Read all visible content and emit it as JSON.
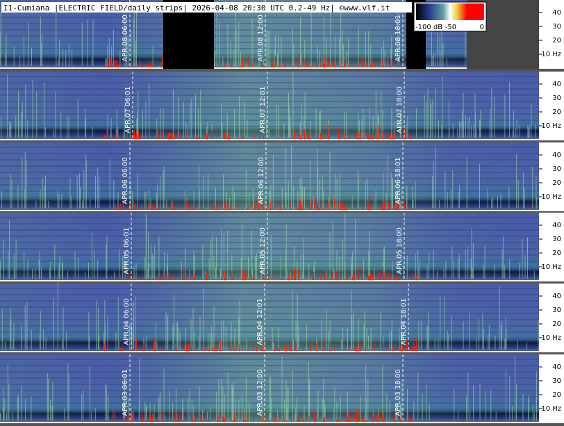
{
  "header": {
    "title": "I1-Cumiana |ELECTRIC FIELD/daily strips| 2026-04-08 20:30 UTC 0.2-49 Hz| ©www.vlf.it"
  },
  "colorbar": {
    "labels": [
      "-100 dB",
      "-50",
      "0"
    ]
  },
  "strips": [
    {
      "markers": [
        "APR.08 06:00",
        "APR.08 12:00",
        "APR.08 18:01"
      ],
      "frequency_labels": [
        "40",
        "30",
        "20",
        "10 Hz"
      ]
    },
    {
      "markers": [
        "APR.07 06:01",
        "APR.07 12:01",
        "APR.07 18:00"
      ],
      "frequency_labels": [
        "40",
        "30",
        "20",
        "10 Hz"
      ]
    },
    {
      "markers": [
        "APR.06 06:00",
        "APR.06 12:00",
        "APR.06 18:01"
      ],
      "frequency_labels": [
        "40",
        "30",
        "20",
        "10 Hz"
      ]
    },
    {
      "markers": [
        "APR.05 06:01",
        "APR.05 12:00",
        "APR.05 18:00"
      ],
      "frequency_labels": [
        "40",
        "30",
        "20",
        "10 Hz"
      ]
    },
    {
      "markers": [
        "APR.04 06:00",
        "APR.04 12:01",
        "APR.04 18:01"
      ],
      "frequency_labels": [
        "40",
        "30",
        "20",
        "10 Hz"
      ]
    },
    {
      "markers": [
        "APR.03 06:01",
        "APR.03 12:00",
        "APR.03 18:00"
      ],
      "frequency_labels": [
        "40",
        "30",
        "20",
        "10 Hz"
      ]
    }
  ]
}
